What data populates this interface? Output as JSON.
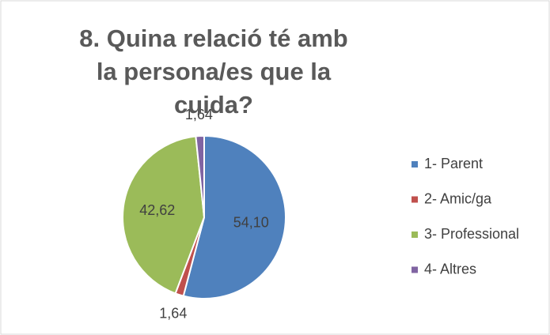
{
  "chart_data": {
    "type": "pie",
    "title": "8. Quina relació té amb la persona/es que la cuida?",
    "categories": [
      "1- Parent",
      "2- Amic/ga",
      "3- Professional",
      "4- Altres"
    ],
    "values": [
      54.1,
      1.64,
      42.62,
      1.64
    ],
    "value_labels": [
      "54,10",
      "1,64",
      "42,62",
      "1,64"
    ],
    "colors": [
      "#4f81bd",
      "#c0504d",
      "#9bbb59",
      "#8064a2"
    ],
    "legend": "right"
  }
}
